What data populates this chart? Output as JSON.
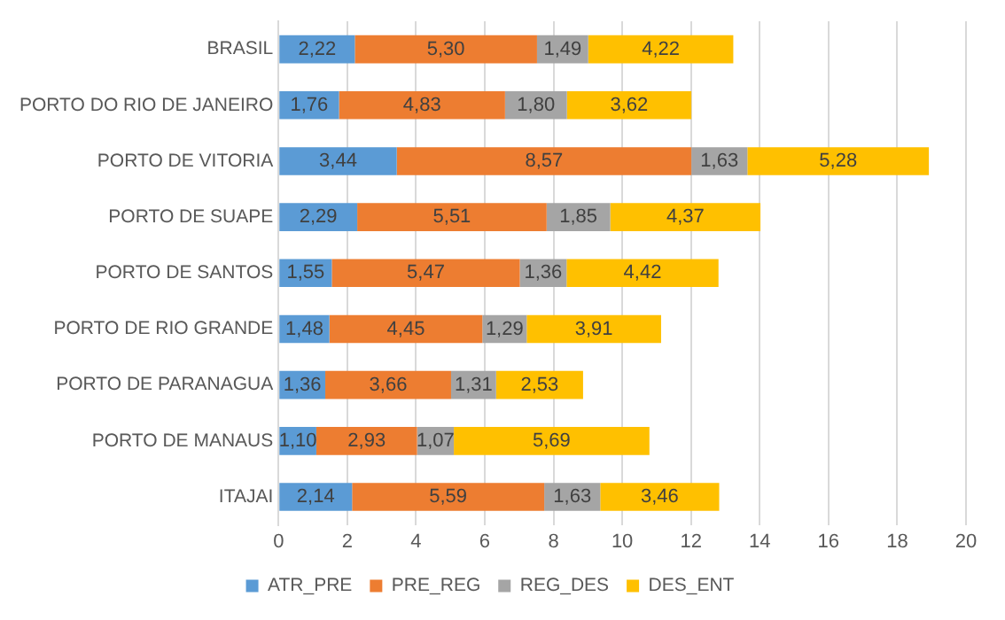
{
  "chart_data": {
    "type": "bar",
    "orientation": "horizontal",
    "stacked": true,
    "categories": [
      "BRASIL",
      "PORTO DO RIO DE JANEIRO",
      "PORTO DE VITORIA",
      "PORTO DE SUAPE",
      "PORTO DE SANTOS",
      "PORTO DE RIO GRANDE",
      "PORTO DE PARANAGUA",
      "PORTO DE MANAUS",
      "ITAJAI"
    ],
    "series": [
      {
        "name": "ATR_PRE",
        "color": "#5b9bd5",
        "values": [
          2.22,
          1.76,
          3.44,
          2.29,
          1.55,
          1.48,
          1.36,
          1.1,
          2.14
        ],
        "value_labels": [
          "2,22",
          "1,76",
          "3,44",
          "2,29",
          "1,55",
          "1,48",
          "1,36",
          "1,10",
          "2,14"
        ]
      },
      {
        "name": "PRE_REG",
        "color": "#ed7d31",
        "values": [
          5.3,
          4.83,
          8.57,
          5.51,
          5.47,
          4.45,
          3.66,
          2.93,
          5.59
        ],
        "value_labels": [
          "5,30",
          "4,83",
          "8,57",
          "5,51",
          "5,47",
          "4,45",
          "3,66",
          "2,93",
          "5,59"
        ]
      },
      {
        "name": "REG_DES",
        "color": "#a5a5a5",
        "values": [
          1.49,
          1.8,
          1.63,
          1.85,
          1.36,
          1.29,
          1.31,
          1.07,
          1.63
        ],
        "value_labels": [
          "1,49",
          "1,80",
          "1,63",
          "1,85",
          "1,36",
          "1,29",
          "1,31",
          "1,07",
          "1,63"
        ]
      },
      {
        "name": "DES_ENT",
        "color": "#ffc000",
        "values": [
          4.22,
          3.62,
          5.28,
          4.37,
          4.42,
          3.91,
          2.53,
          5.69,
          3.46
        ],
        "value_labels": [
          "4,22",
          "3,62",
          "5,28",
          "4,37",
          "4,42",
          "3,91",
          "2,53",
          "5,69",
          "3,46"
        ]
      }
    ],
    "xlim": [
      0,
      20
    ],
    "xticks": [
      0,
      2,
      4,
      6,
      8,
      10,
      12,
      14,
      16,
      18,
      20
    ],
    "grid": "x",
    "legend": "bottom"
  }
}
